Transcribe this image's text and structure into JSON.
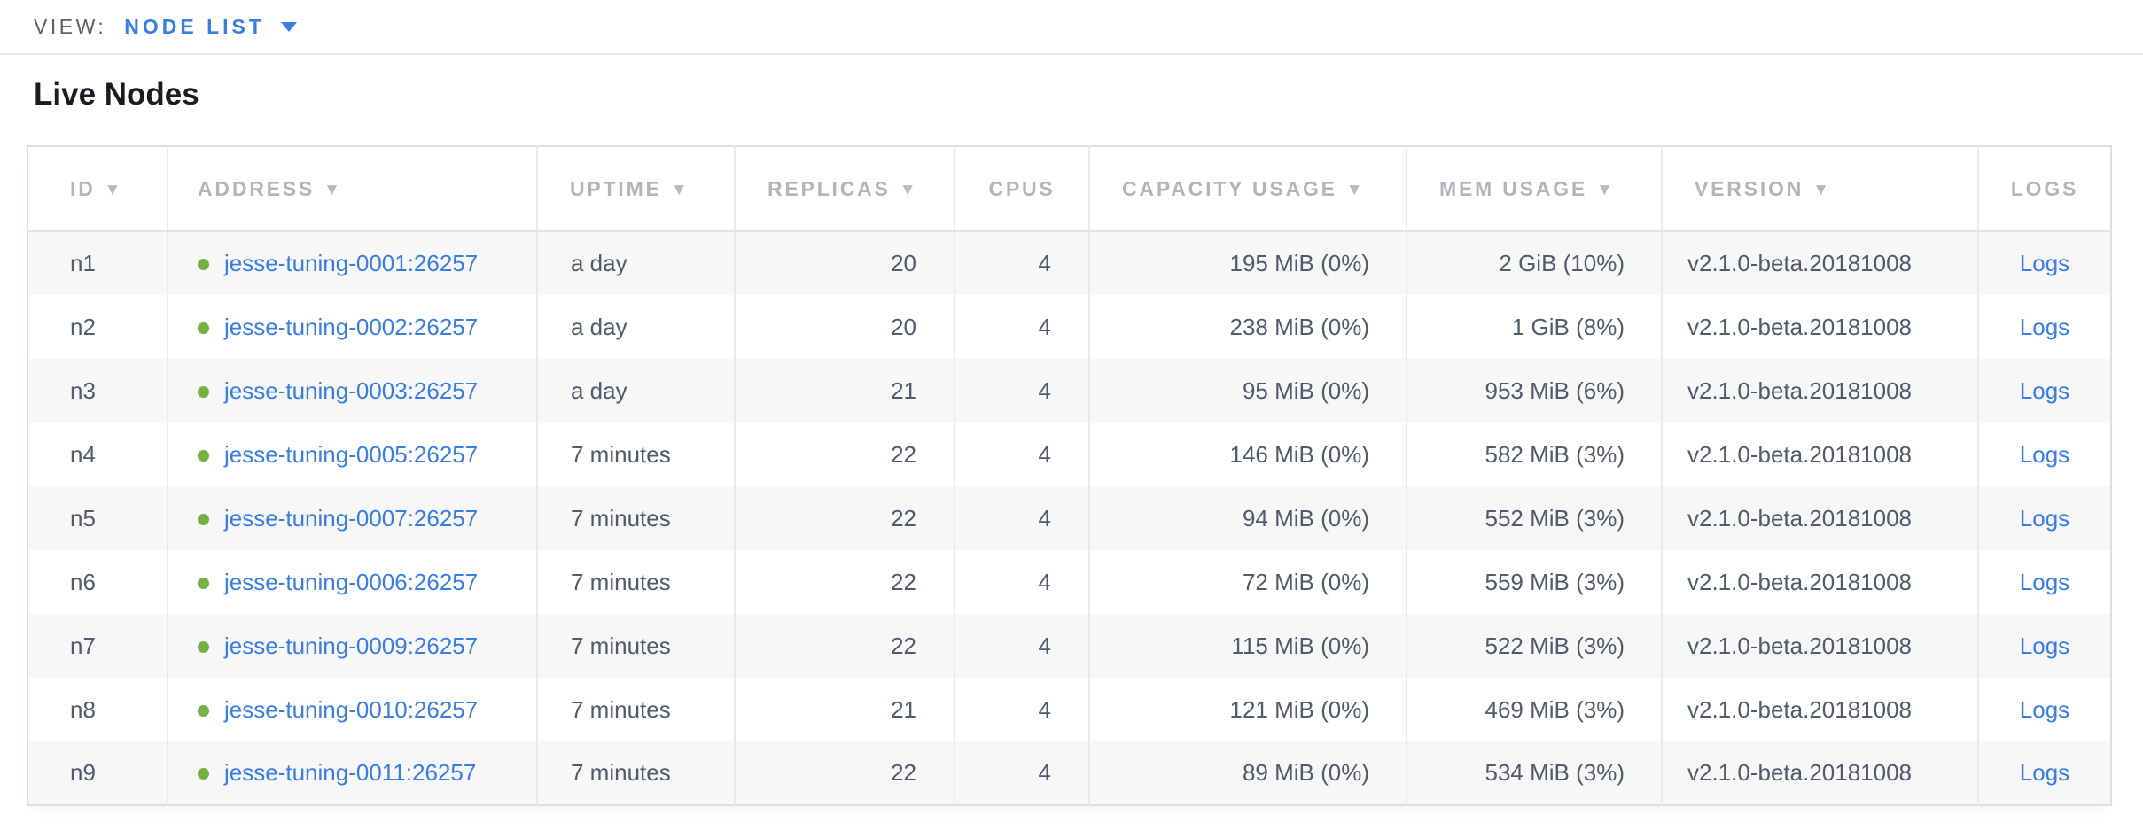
{
  "view_bar": {
    "label": "VIEW:",
    "selected": "NODE LIST"
  },
  "page": {
    "title": "Live Nodes"
  },
  "colors": {
    "accent_blue": "#3a7de3",
    "live_dot_green": "#76b042",
    "header_gray": "#b2b5bb",
    "body_text": "#525a6c",
    "row_stripe": "#f7f7f8"
  },
  "table": {
    "logs_label": "Logs",
    "columns": [
      {
        "key": "id",
        "label": "ID",
        "sortable": true
      },
      {
        "key": "address",
        "label": "ADDRESS",
        "sortable": true
      },
      {
        "key": "uptime",
        "label": "UPTIME",
        "sortable": true
      },
      {
        "key": "replicas",
        "label": "REPLICAS",
        "sortable": true
      },
      {
        "key": "cpus",
        "label": "CPUS",
        "sortable": false
      },
      {
        "key": "capacity",
        "label": "CAPACITY USAGE",
        "sortable": true
      },
      {
        "key": "mem",
        "label": "MEM USAGE",
        "sortable": true
      },
      {
        "key": "version",
        "label": "VERSION",
        "sortable": true
      },
      {
        "key": "logs",
        "label": "LOGS",
        "sortable": false
      }
    ],
    "rows": [
      {
        "id": "n1",
        "status": "live",
        "address": "jesse-tuning-0001:26257",
        "uptime": "a day",
        "replicas": "20",
        "cpus": "4",
        "capacity": "195 MiB (0%)",
        "mem": "2 GiB (10%)",
        "version": "v2.1.0-beta.20181008"
      },
      {
        "id": "n2",
        "status": "live",
        "address": "jesse-tuning-0002:26257",
        "uptime": "a day",
        "replicas": "20",
        "cpus": "4",
        "capacity": "238 MiB (0%)",
        "mem": "1 GiB (8%)",
        "version": "v2.1.0-beta.20181008"
      },
      {
        "id": "n3",
        "status": "live",
        "address": "jesse-tuning-0003:26257",
        "uptime": "a day",
        "replicas": "21",
        "cpus": "4",
        "capacity": "95 MiB (0%)",
        "mem": "953 MiB (6%)",
        "version": "v2.1.0-beta.20181008"
      },
      {
        "id": "n4",
        "status": "live",
        "address": "jesse-tuning-0005:26257",
        "uptime": "7 minutes",
        "replicas": "22",
        "cpus": "4",
        "capacity": "146 MiB (0%)",
        "mem": "582 MiB (3%)",
        "version": "v2.1.0-beta.20181008"
      },
      {
        "id": "n5",
        "status": "live",
        "address": "jesse-tuning-0007:26257",
        "uptime": "7 minutes",
        "replicas": "22",
        "cpus": "4",
        "capacity": "94 MiB (0%)",
        "mem": "552 MiB (3%)",
        "version": "v2.1.0-beta.20181008"
      },
      {
        "id": "n6",
        "status": "live",
        "address": "jesse-tuning-0006:26257",
        "uptime": "7 minutes",
        "replicas": "22",
        "cpus": "4",
        "capacity": "72 MiB (0%)",
        "mem": "559 MiB (3%)",
        "version": "v2.1.0-beta.20181008"
      },
      {
        "id": "n7",
        "status": "live",
        "address": "jesse-tuning-0009:26257",
        "uptime": "7 minutes",
        "replicas": "22",
        "cpus": "4",
        "capacity": "115 MiB (0%)",
        "mem": "522 MiB (3%)",
        "version": "v2.1.0-beta.20181008"
      },
      {
        "id": "n8",
        "status": "live",
        "address": "jesse-tuning-0010:26257",
        "uptime": "7 minutes",
        "replicas": "21",
        "cpus": "4",
        "capacity": "121 MiB (0%)",
        "mem": "469 MiB (3%)",
        "version": "v2.1.0-beta.20181008"
      },
      {
        "id": "n9",
        "status": "live",
        "address": "jesse-tuning-0011:26257",
        "uptime": "7 minutes",
        "replicas": "22",
        "cpus": "4",
        "capacity": "89 MiB (0%)",
        "mem": "534 MiB (3%)",
        "version": "v2.1.0-beta.20181008"
      }
    ]
  }
}
